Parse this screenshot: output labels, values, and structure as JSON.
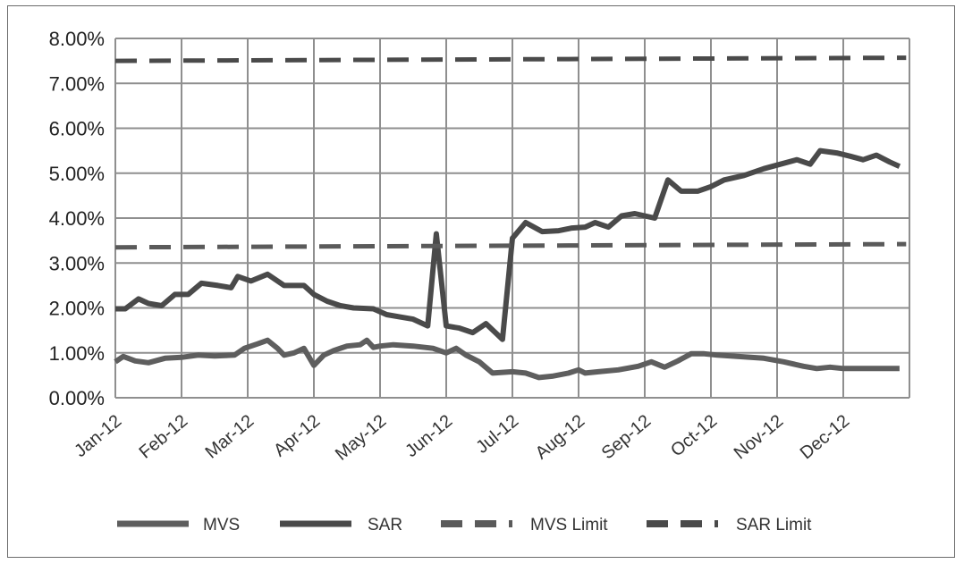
{
  "chart_data": {
    "type": "line",
    "title": "",
    "xlabel": "",
    "ylabel": "",
    "ylim": [
      0,
      8
    ],
    "grid": true,
    "legend_position": "bottom",
    "y_ticks": [
      "0.00%",
      "1.00%",
      "2.00%",
      "3.00%",
      "4.00%",
      "5.00%",
      "6.00%",
      "7.00%",
      "8.00%"
    ],
    "x_ticks": [
      "Jan-12",
      "Feb-12",
      "Mar-12",
      "Apr-12",
      "May-12",
      "Jun-12",
      "Jul-12",
      "Aug-12",
      "Sep-12",
      "Oct-12",
      "Nov-12",
      "Dec-12"
    ],
    "series": [
      {
        "name": "MVS",
        "style": "solid",
        "color": "#5e5e5e",
        "points": [
          [
            0.0,
            0.8
          ],
          [
            0.12,
            0.92
          ],
          [
            0.3,
            0.82
          ],
          [
            0.5,
            0.78
          ],
          [
            0.75,
            0.88
          ],
          [
            1.0,
            0.9
          ],
          [
            1.25,
            0.95
          ],
          [
            1.5,
            0.93
          ],
          [
            1.8,
            0.95
          ],
          [
            1.95,
            1.1
          ],
          [
            2.15,
            1.2
          ],
          [
            2.3,
            1.28
          ],
          [
            2.45,
            1.1
          ],
          [
            2.55,
            0.95
          ],
          [
            2.7,
            1.0
          ],
          [
            2.85,
            1.1
          ],
          [
            3.0,
            0.72
          ],
          [
            3.15,
            0.95
          ],
          [
            3.3,
            1.05
          ],
          [
            3.5,
            1.15
          ],
          [
            3.7,
            1.18
          ],
          [
            3.8,
            1.28
          ],
          [
            3.9,
            1.12
          ],
          [
            4.0,
            1.15
          ],
          [
            4.2,
            1.18
          ],
          [
            4.5,
            1.15
          ],
          [
            4.8,
            1.1
          ],
          [
            5.0,
            1.0
          ],
          [
            5.15,
            1.1
          ],
          [
            5.3,
            0.95
          ],
          [
            5.5,
            0.8
          ],
          [
            5.7,
            0.55
          ],
          [
            6.0,
            0.58
          ],
          [
            6.2,
            0.55
          ],
          [
            6.4,
            0.45
          ],
          [
            6.6,
            0.48
          ],
          [
            6.85,
            0.55
          ],
          [
            7.0,
            0.62
          ],
          [
            7.1,
            0.55
          ],
          [
            7.3,
            0.58
          ],
          [
            7.6,
            0.62
          ],
          [
            7.9,
            0.7
          ],
          [
            8.1,
            0.8
          ],
          [
            8.3,
            0.68
          ],
          [
            8.5,
            0.82
          ],
          [
            8.7,
            0.98
          ],
          [
            8.9,
            0.98
          ],
          [
            9.1,
            0.95
          ],
          [
            9.4,
            0.92
          ],
          [
            9.8,
            0.88
          ],
          [
            10.1,
            0.8
          ],
          [
            10.4,
            0.7
          ],
          [
            10.6,
            0.65
          ],
          [
            10.8,
            0.68
          ],
          [
            11.0,
            0.65
          ],
          [
            11.3,
            0.65
          ],
          [
            11.6,
            0.65
          ],
          [
            11.85,
            0.65
          ]
        ]
      },
      {
        "name": "SAR",
        "style": "solid",
        "color": "#4a4a4a",
        "points": [
          [
            0.0,
            1.98
          ],
          [
            0.15,
            1.98
          ],
          [
            0.35,
            2.2
          ],
          [
            0.5,
            2.1
          ],
          [
            0.7,
            2.05
          ],
          [
            0.9,
            2.3
          ],
          [
            1.1,
            2.3
          ],
          [
            1.3,
            2.55
          ],
          [
            1.55,
            2.5
          ],
          [
            1.75,
            2.45
          ],
          [
            1.85,
            2.7
          ],
          [
            2.05,
            2.6
          ],
          [
            2.3,
            2.75
          ],
          [
            2.55,
            2.5
          ],
          [
            2.85,
            2.5
          ],
          [
            3.0,
            2.3
          ],
          [
            3.2,
            2.15
          ],
          [
            3.4,
            2.05
          ],
          [
            3.6,
            2.0
          ],
          [
            3.9,
            1.98
          ],
          [
            4.1,
            1.85
          ],
          [
            4.3,
            1.8
          ],
          [
            4.5,
            1.75
          ],
          [
            4.72,
            1.6
          ],
          [
            4.85,
            3.65
          ],
          [
            5.0,
            1.6
          ],
          [
            5.2,
            1.55
          ],
          [
            5.4,
            1.45
          ],
          [
            5.6,
            1.65
          ],
          [
            5.85,
            1.3
          ],
          [
            6.0,
            3.55
          ],
          [
            6.2,
            3.9
          ],
          [
            6.45,
            3.7
          ],
          [
            6.7,
            3.72
          ],
          [
            6.9,
            3.78
          ],
          [
            7.1,
            3.8
          ],
          [
            7.25,
            3.9
          ],
          [
            7.45,
            3.8
          ],
          [
            7.65,
            4.05
          ],
          [
            7.85,
            4.1
          ],
          [
            8.0,
            4.05
          ],
          [
            8.15,
            4.0
          ],
          [
            8.35,
            4.85
          ],
          [
            8.55,
            4.6
          ],
          [
            8.8,
            4.6
          ],
          [
            9.0,
            4.7
          ],
          [
            9.2,
            4.85
          ],
          [
            9.5,
            4.95
          ],
          [
            9.8,
            5.1
          ],
          [
            10.05,
            5.2
          ],
          [
            10.3,
            5.3
          ],
          [
            10.5,
            5.2
          ],
          [
            10.65,
            5.5
          ],
          [
            10.9,
            5.45
          ],
          [
            11.1,
            5.38
          ],
          [
            11.3,
            5.3
          ],
          [
            11.5,
            5.4
          ],
          [
            11.7,
            5.25
          ],
          [
            11.85,
            5.15
          ]
        ]
      },
      {
        "name": "MVS Limit",
        "style": "dashed",
        "color": "#5a5a5a",
        "points": [
          [
            0.0,
            3.35
          ],
          [
            11.95,
            3.42
          ]
        ]
      },
      {
        "name": "SAR Limit",
        "style": "dashed",
        "color": "#4a4a4a",
        "points": [
          [
            0.0,
            7.5
          ],
          [
            11.95,
            7.57
          ]
        ]
      }
    ]
  }
}
